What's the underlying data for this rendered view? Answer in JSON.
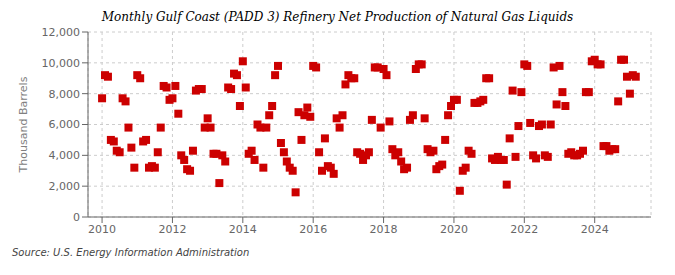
{
  "chart_data": {
    "type": "scatter",
    "title": "Monthly Gulf Coast (PADD 3) Refinery Net Production of Natural Gas Liquids",
    "y_label": "Thousand Barrels",
    "annotations": [
      "Source: U.S. Energy Information Administration"
    ],
    "color": "#cc0000",
    "marker": "square",
    "grid": true,
    "xlim": [
      2009.6,
      2025.6
    ],
    "xticks": [
      2010,
      2012,
      2014,
      2016,
      2018,
      2020,
      2022,
      2024
    ],
    "ylim": [
      0,
      12000
    ],
    "yticks": [
      0,
      {
        "value": 2000,
        "label": "2,000"
      },
      {
        "value": 4000,
        "label": "4,000"
      },
      {
        "value": 6000,
        "label": "6,000"
      },
      {
        "value": 8000,
        "label": "8,000"
      },
      {
        "value": 10000,
        "label": "10,000"
      },
      {
        "value": 12000,
        "label": "12,000"
      }
    ],
    "x": [
      2010.0,
      2010.083,
      2010.167,
      2010.25,
      2010.333,
      2010.417,
      2010.5,
      2010.583,
      2010.667,
      2010.75,
      2010.833,
      2010.917,
      2011.0,
      2011.083,
      2011.167,
      2011.25,
      2011.333,
      2011.417,
      2011.5,
      2011.583,
      2011.667,
      2011.75,
      2011.833,
      2011.917,
      2012.0,
      2012.083,
      2012.167,
      2012.25,
      2012.333,
      2012.417,
      2012.5,
      2012.583,
      2012.667,
      2012.75,
      2012.833,
      2012.917,
      2013.0,
      2013.083,
      2013.167,
      2013.25,
      2013.333,
      2013.417,
      2013.5,
      2013.583,
      2013.667,
      2013.75,
      2013.833,
      2013.917,
      2014.0,
      2014.083,
      2014.167,
      2014.25,
      2014.333,
      2014.417,
      2014.5,
      2014.583,
      2014.667,
      2014.75,
      2014.833,
      2014.917,
      2015.0,
      2015.083,
      2015.167,
      2015.25,
      2015.333,
      2015.417,
      2015.5,
      2015.583,
      2015.667,
      2015.75,
      2015.833,
      2015.917,
      2016.0,
      2016.083,
      2016.167,
      2016.25,
      2016.333,
      2016.417,
      2016.5,
      2016.583,
      2016.667,
      2016.75,
      2016.833,
      2016.917,
      2017.0,
      2017.083,
      2017.167,
      2017.25,
      2017.333,
      2017.417,
      2017.5,
      2017.583,
      2017.667,
      2017.75,
      2017.833,
      2017.917,
      2018.0,
      2018.083,
      2018.167,
      2018.25,
      2018.333,
      2018.417,
      2018.5,
      2018.583,
      2018.667,
      2018.75,
      2018.833,
      2018.917,
      2019.0,
      2019.083,
      2019.167,
      2019.25,
      2019.333,
      2019.417,
      2019.5,
      2019.583,
      2019.667,
      2019.75,
      2019.833,
      2019.917,
      2020.0,
      2020.083,
      2020.167,
      2020.25,
      2020.333,
      2020.417,
      2020.5,
      2020.583,
      2020.667,
      2020.75,
      2020.833,
      2020.917,
      2021.0,
      2021.083,
      2021.167,
      2021.25,
      2021.333,
      2021.417,
      2021.5,
      2021.583,
      2021.667,
      2021.75,
      2021.833,
      2021.917,
      2022.0,
      2022.083,
      2022.167,
      2022.25,
      2022.333,
      2022.417,
      2022.5,
      2022.583,
      2022.667,
      2022.75,
      2022.833,
      2022.917,
      2023.0,
      2023.083,
      2023.167,
      2023.25,
      2023.333,
      2023.417,
      2023.5,
      2023.583,
      2023.667,
      2023.75,
      2023.833,
      2023.917,
      2024.0,
      2024.083,
      2024.167,
      2024.25,
      2024.333,
      2024.417,
      2024.5,
      2024.583,
      2024.667,
      2024.75,
      2024.833,
      2024.917,
      2025.0,
      2025.083,
      2025.167
    ],
    "values": [
      7700,
      9200,
      9100,
      5000,
      4900,
      4300,
      4200,
      7700,
      7500,
      5800,
      4500,
      3200,
      9200,
      9000,
      4900,
      5000,
      3200,
      3300,
      3200,
      4200,
      5800,
      8500,
      8400,
      7600,
      7700,
      8500,
      6700,
      4000,
      3700,
      3100,
      3000,
      4300,
      8200,
      8300,
      8300,
      5800,
      6400,
      5800,
      4100,
      4100,
      2200,
      4000,
      3600,
      8400,
      8300,
      9300,
      9200,
      7200,
      10100,
      8400,
      4100,
      4300,
      3700,
      6000,
      5800,
      3200,
      5800,
      6600,
      7200,
      9200,
      9800,
      4800,
      4200,
      3600,
      3200,
      3000,
      1600,
      6800,
      5000,
      6600,
      7100,
      6500,
      9800,
      9700,
      4200,
      3000,
      5100,
      3300,
      3200,
      2800,
      6400,
      5800,
      6600,
      8600,
      9200,
      9000,
      9000,
      4200,
      4100,
      3700,
      4000,
      4200,
      6300,
      9700,
      9700,
      5800,
      9600,
      9200,
      6200,
      4400,
      4000,
      4200,
      3600,
      3100,
      3200,
      6300,
      6600,
      9600,
      9900,
      9900,
      6400,
      4400,
      4200,
      4300,
      3100,
      3300,
      3400,
      5000,
      6600,
      7200,
      7600,
      7600,
      1700,
      3000,
      3200,
      4300,
      4100,
      7400,
      7400,
      7500,
      7600,
      9000,
      9000,
      3800,
      3700,
      3900,
      3700,
      3700,
      2100,
      5100,
      8200,
      3900,
      5900,
      8100,
      9900,
      9800,
      6100,
      4000,
      3800,
      5900,
      6000,
      4000,
      3900,
      6000,
      9700,
      7300,
      9800,
      8100,
      7200,
      4100,
      4200,
      4000,
      4000,
      4100,
      4300,
      8100,
      8100,
      10100,
      10200,
      9900,
      9900,
      4600,
      4600,
      4300,
      4400,
      4400,
      7500,
      10200,
      10200,
      9100,
      8000,
      9200,
      9100
    ]
  }
}
